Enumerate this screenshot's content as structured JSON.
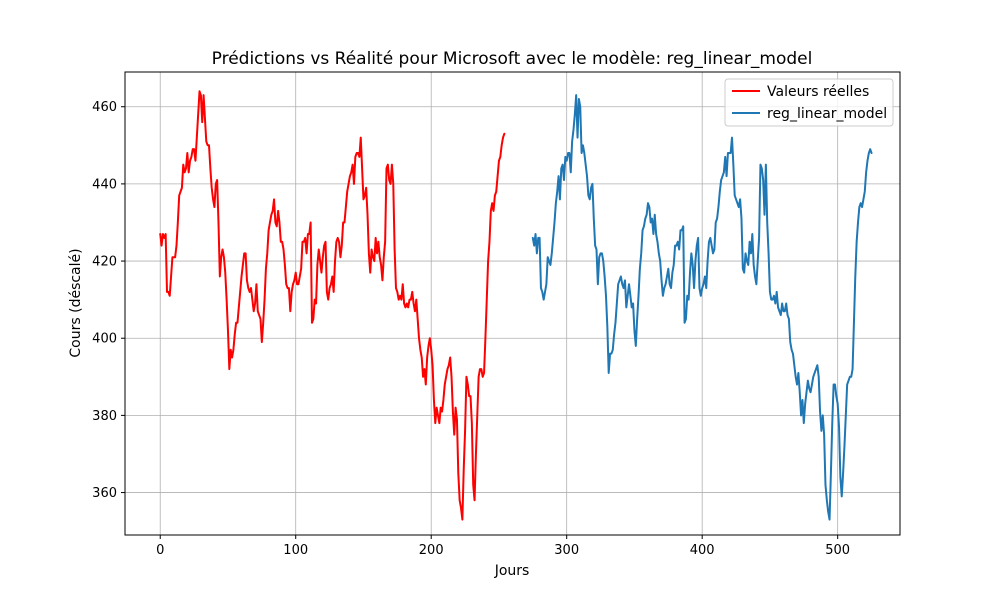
{
  "chart_data": {
    "type": "line",
    "title": "Prédictions vs Réalité pour Microsoft avec le modèle: reg_linear_model",
    "xlabel": "Jours",
    "ylabel": "Cours (déscalé)",
    "xlim": [
      -26,
      546
    ],
    "ylim": [
      349,
      469
    ],
    "xticks": [
      0,
      100,
      200,
      300,
      400,
      500
    ],
    "yticks": [
      360,
      380,
      400,
      420,
      440,
      460
    ],
    "grid": true,
    "legend_position": "upper right",
    "series": [
      {
        "name": "Valeurs réelles",
        "color": "#ff0000",
        "x_start": 0,
        "x_step": 1,
        "y": [
          427,
          424,
          427,
          426,
          427,
          412,
          412,
          411,
          416,
          421,
          421,
          421,
          424,
          430,
          437,
          438,
          439,
          445,
          443,
          444,
          448,
          443,
          446,
          447,
          449,
          449,
          446,
          452,
          458,
          464,
          463,
          456,
          463,
          457,
          451,
          450,
          450,
          444,
          439,
          436,
          434,
          440,
          441,
          430,
          416,
          421,
          423,
          421,
          417,
          410,
          402,
          392,
          397,
          395,
          397,
          401,
          404,
          404,
          408,
          412,
          416,
          419,
          422,
          422,
          415,
          413,
          412,
          413,
          410,
          407,
          409,
          414,
          407,
          406,
          405,
          399,
          404,
          410,
          418,
          422,
          428,
          430,
          432,
          433,
          436,
          430,
          429,
          433,
          430,
          425,
          425,
          423,
          419,
          414,
          413,
          413,
          407,
          412,
          414,
          415,
          417,
          414,
          414,
          416,
          418,
          425,
          425,
          426,
          422,
          427,
          427,
          430,
          404,
          405,
          410,
          409,
          419,
          423,
          420,
          417,
          421,
          424,
          425,
          412,
          410,
          413,
          414,
          416,
          412,
          420,
          425,
          426,
          425,
          421,
          424,
          430,
          430,
          434,
          438,
          440,
          442,
          443,
          445,
          440,
          447,
          448,
          448,
          447,
          452,
          444,
          436,
          437,
          439,
          432,
          422,
          417,
          423,
          421,
          420,
          426,
          422,
          425,
          421,
          419,
          415,
          421,
          425,
          444,
          445,
          441,
          440,
          445,
          440,
          423,
          413,
          412,
          410,
          411,
          410,
          414,
          409,
          408,
          409,
          408,
          410,
          410,
          412,
          409,
          407,
          410,
          405,
          400,
          397,
          395,
          390,
          392,
          388,
          395,
          398,
          400,
          397,
          393,
          384,
          378,
          382,
          380,
          378,
          382,
          381,
          384,
          388,
          390,
          392,
          393,
          395,
          390,
          381,
          375,
          382,
          379,
          365,
          358,
          356,
          353,
          366,
          376,
          390,
          388,
          385,
          385,
          378,
          362,
          358,
          370,
          380,
          390,
          392,
          392,
          390,
          391,
          400,
          410,
          420,
          425,
          433,
          435,
          433,
          437,
          438,
          442,
          446,
          447,
          450,
          452,
          453
        ]
      },
      {
        "name": "reg_linear_model",
        "color": "#1f77b4",
        "x_start": 275,
        "x_step": 1,
        "y": [
          426,
          424,
          427,
          422,
          426,
          426,
          413,
          412,
          410,
          412,
          414,
          421,
          420,
          419,
          422,
          426,
          430,
          435,
          438,
          442,
          436,
          444,
          445,
          441,
          447,
          446,
          448,
          448,
          443,
          451,
          454,
          458,
          463,
          452,
          462,
          460,
          448,
          450,
          448,
          445,
          442,
          437,
          436,
          439,
          440,
          431,
          424,
          423,
          414,
          421,
          422,
          422,
          420,
          416,
          411,
          403,
          391,
          396,
          396,
          397,
          401,
          404,
          409,
          414,
          415,
          416,
          414,
          413,
          415,
          408,
          411,
          414,
          411,
          408,
          409,
          402,
          398,
          405,
          411,
          418,
          422,
          428,
          429,
          431,
          432,
          435,
          434,
          430,
          431,
          427,
          432,
          427,
          425,
          422,
          420,
          415,
          411,
          413,
          414,
          416,
          418,
          414,
          413,
          417,
          419,
          424,
          424,
          425,
          423,
          428,
          428,
          429,
          404,
          405,
          411,
          410,
          417,
          422,
          419,
          413,
          420,
          424,
          426,
          413,
          411,
          413,
          414,
          416,
          413,
          420,
          425,
          426,
          424,
          422,
          423,
          430,
          431,
          434,
          438,
          441,
          442,
          443,
          447,
          442,
          448,
          448,
          448,
          452,
          445,
          437,
          436,
          435,
          434,
          436,
          431,
          418,
          417,
          422,
          420,
          419,
          425,
          422,
          427,
          419,
          416,
          414,
          420,
          426,
          445,
          444,
          441,
          432,
          445,
          430,
          422,
          412,
          410,
          410,
          411,
          409,
          412,
          408,
          407,
          406,
          409,
          407,
          407,
          409,
          406,
          405,
          399,
          397,
          396,
          393,
          390,
          388,
          391,
          386,
          380,
          384,
          378,
          383,
          386,
          389,
          387,
          386,
          388,
          390,
          391,
          392,
          393,
          390,
          381,
          376,
          380,
          375,
          362,
          358,
          355,
          353,
          365,
          378,
          388,
          388,
          385,
          383,
          377,
          364,
          359,
          365,
          372,
          380,
          388,
          389,
          390,
          390,
          392,
          404,
          416,
          425,
          430,
          434,
          435,
          434,
          436,
          438,
          443,
          446,
          448,
          449,
          448
        ]
      }
    ]
  }
}
